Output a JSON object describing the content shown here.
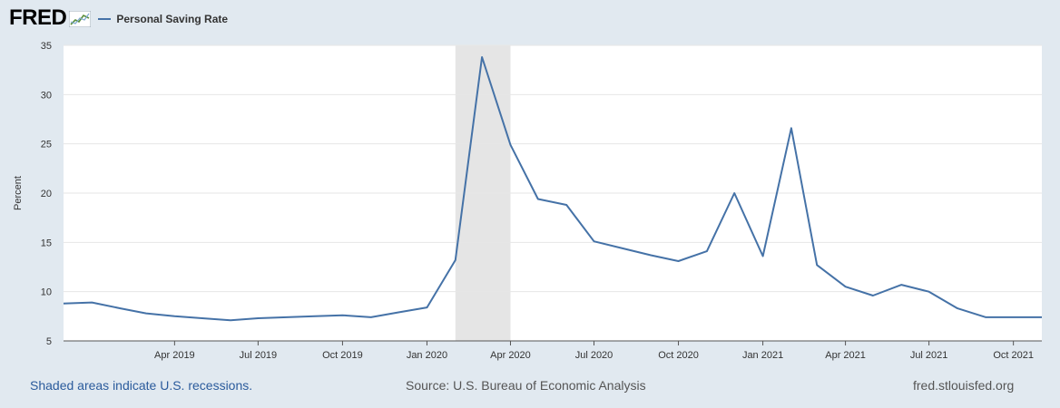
{
  "header": {
    "logo_text": "FRED",
    "logo_icon": "fred-chart-logo-icon",
    "legend_label": "Personal Saving Rate"
  },
  "footer": {
    "note": "Shaded areas indicate U.S. recessions.",
    "source": "Source: U.S. Bureau of Economic Analysis",
    "url": "fred.stlouisfed.org"
  },
  "chart_data": {
    "type": "line",
    "ylabel": "Percent",
    "ylim": [
      5,
      35
    ],
    "yticks": [
      5,
      10,
      15,
      20,
      25,
      30,
      35
    ],
    "xlim": [
      "2018-12-01",
      "2021-11-01"
    ],
    "xticks": [
      {
        "date": "2019-04-01",
        "label": "Apr 2019"
      },
      {
        "date": "2019-07-01",
        "label": "Jul 2019"
      },
      {
        "date": "2019-10-01",
        "label": "Oct 2019"
      },
      {
        "date": "2020-01-01",
        "label": "Jan 2020"
      },
      {
        "date": "2020-04-01",
        "label": "Apr 2020"
      },
      {
        "date": "2020-07-01",
        "label": "Jul 2020"
      },
      {
        "date": "2020-10-01",
        "label": "Oct 2020"
      },
      {
        "date": "2021-01-01",
        "label": "Jan 2021"
      },
      {
        "date": "2021-04-01",
        "label": "Apr 2021"
      },
      {
        "date": "2021-07-01",
        "label": "Jul 2021"
      },
      {
        "date": "2021-10-01",
        "label": "Oct 2021"
      }
    ],
    "recession": {
      "start": "2020-02-01",
      "end": "2020-04-01",
      "color": "#e5e5e5"
    },
    "grid": true,
    "legend_position": "top-left",
    "series": [
      {
        "name": "Personal Saving Rate",
        "color": "#4572a7",
        "x": [
          "2018-12-01",
          "2019-01-01",
          "2019-02-01",
          "2019-03-01",
          "2019-04-01",
          "2019-05-01",
          "2019-06-01",
          "2019-07-01",
          "2019-08-01",
          "2019-09-01",
          "2019-10-01",
          "2019-11-01",
          "2019-12-01",
          "2020-01-01",
          "2020-02-01",
          "2020-03-01",
          "2020-04-01",
          "2020-05-01",
          "2020-06-01",
          "2020-07-01",
          "2020-08-01",
          "2020-09-01",
          "2020-10-01",
          "2020-11-01",
          "2020-12-01",
          "2021-01-01",
          "2021-02-01",
          "2021-03-01",
          "2021-04-01",
          "2021-05-01",
          "2021-06-01",
          "2021-07-01",
          "2021-08-01",
          "2021-09-01",
          "2021-10-01",
          "2021-11-01"
        ],
        "y": [
          8.8,
          8.9,
          8.3,
          7.8,
          7.5,
          7.3,
          7.1,
          7.3,
          7.4,
          7.5,
          7.6,
          7.4,
          7.9,
          8.4,
          13.2,
          33.8,
          24.9,
          19.4,
          18.8,
          15.1,
          14.4,
          13.7,
          13.1,
          14.1,
          20.0,
          13.6,
          26.6,
          12.7,
          10.5,
          9.6,
          10.7,
          10.0,
          8.3,
          7.4,
          7.4,
          7.4
        ]
      }
    ]
  }
}
